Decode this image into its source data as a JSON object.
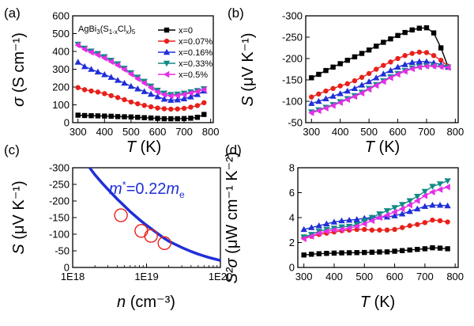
{
  "chart_data": [
    {
      "type": "line",
      "panel_label": "(a)",
      "xlabel": "T (K)",
      "ylabel": "σ (S cm⁻¹)",
      "xlim": [
        280,
        810
      ],
      "ylim": [
        0,
        600
      ],
      "xticks": [
        300,
        400,
        500,
        600,
        700,
        800
      ],
      "yticks": [
        0,
        100,
        200,
        300,
        400,
        500,
        600
      ],
      "legend_title": "AgBi3(S1-xClx)5",
      "legend_position": "top-right",
      "series": [
        {
          "name": "x=0",
          "color": "#000000",
          "marker": "square",
          "x": [
            300,
            325,
            350,
            375,
            400,
            425,
            450,
            475,
            500,
            525,
            550,
            575,
            600,
            625,
            650,
            675,
            700,
            725,
            750,
            775
          ],
          "y": [
            42,
            40,
            39,
            38,
            37,
            36,
            34,
            33,
            32,
            30,
            28,
            26,
            24,
            22,
            22,
            22,
            23,
            25,
            30,
            46
          ]
        },
        {
          "name": "x=0.07%",
          "color": "#e8201b",
          "marker": "circle",
          "x": [
            300,
            325,
            350,
            375,
            400,
            425,
            450,
            475,
            500,
            525,
            550,
            575,
            600,
            625,
            650,
            675,
            700,
            725,
            750,
            775
          ],
          "y": [
            197,
            185,
            178,
            172,
            163,
            152,
            141,
            129,
            116,
            106,
            97,
            89,
            82,
            78,
            76,
            77,
            80,
            87,
            96,
            112
          ]
        },
        {
          "name": "x=0.16%",
          "color": "#1f2fd8",
          "marker": "triangle-up",
          "x": [
            300,
            325,
            350,
            375,
            400,
            425,
            450,
            475,
            500,
            525,
            550,
            575,
            600,
            625,
            650,
            675,
            700,
            725,
            750,
            775
          ],
          "y": [
            340,
            315,
            300,
            285,
            270,
            255,
            238,
            222,
            204,
            190,
            175,
            160,
            146,
            132,
            126,
            128,
            134,
            145,
            158,
            178
          ]
        },
        {
          "name": "x=0.33%",
          "color": "#108a86",
          "marker": "triangle-down",
          "x": [
            300,
            325,
            350,
            375,
            400,
            425,
            450,
            475,
            500,
            525,
            550,
            575,
            600,
            625,
            650,
            675,
            700,
            725,
            750,
            775
          ],
          "y": [
            440,
            418,
            402,
            388,
            370,
            350,
            330,
            305,
            280,
            255,
            232,
            205,
            182,
            166,
            158,
            160,
            165,
            173,
            180,
            190
          ]
        },
        {
          "name": "x=0.5%",
          "color": "#e62ee6",
          "marker": "triangle-left",
          "x": [
            300,
            325,
            350,
            375,
            400,
            425,
            450,
            475,
            500,
            525,
            550,
            575,
            600,
            625,
            650,
            675,
            700,
            725,
            750,
            775
          ],
          "y": [
            435,
            412,
            395,
            380,
            362,
            342,
            322,
            298,
            272,
            246,
            222,
            196,
            172,
            157,
            150,
            152,
            158,
            167,
            175,
            186
          ]
        }
      ]
    },
    {
      "type": "line",
      "panel_label": "(b)",
      "xlabel": "T (K)",
      "ylabel": "S (μV K⁻¹)",
      "xlim": [
        280,
        810
      ],
      "ylim": [
        -50,
        -300
      ],
      "xticks": [
        300,
        400,
        500,
        600,
        700,
        800
      ],
      "yticks": [
        -50,
        -100,
        -150,
        -200,
        -250,
        -300
      ],
      "series": [
        {
          "name": "x=0",
          "color": "#000000",
          "marker": "square",
          "x": [
            300,
            325,
            350,
            375,
            400,
            425,
            450,
            475,
            500,
            525,
            550,
            575,
            600,
            625,
            650,
            675,
            700,
            725,
            750,
            775
          ],
          "y": [
            -155,
            -163,
            -172,
            -180,
            -188,
            -196,
            -204,
            -212,
            -220,
            -229,
            -238,
            -246,
            -254,
            -261,
            -267,
            -271,
            -272,
            -260,
            -225,
            -180
          ]
        },
        {
          "name": "x=0.07%",
          "color": "#e8201b",
          "marker": "circle",
          "x": [
            300,
            325,
            350,
            375,
            400,
            425,
            450,
            475,
            500,
            525,
            550,
            575,
            600,
            625,
            650,
            675,
            700,
            725,
            750,
            775
          ],
          "y": [
            -110,
            -117,
            -124,
            -130,
            -136,
            -141,
            -148,
            -156,
            -165,
            -175,
            -184,
            -192,
            -200,
            -207,
            -212,
            -215,
            -214,
            -207,
            -196,
            -182
          ]
        },
        {
          "name": "x=0.16%",
          "color": "#1f2fd8",
          "marker": "triangle-up",
          "x": [
            300,
            325,
            350,
            375,
            400,
            425,
            450,
            475,
            500,
            525,
            550,
            575,
            600,
            625,
            650,
            675,
            700,
            725,
            750,
            775
          ],
          "y": [
            -95,
            -100,
            -106,
            -112,
            -118,
            -124,
            -130,
            -138,
            -146,
            -155,
            -164,
            -172,
            -180,
            -186,
            -191,
            -193,
            -193,
            -190,
            -186,
            -180
          ]
        },
        {
          "name": "x=0.33%",
          "color": "#108a86",
          "marker": "triangle-down",
          "x": [
            300,
            325,
            350,
            375,
            400,
            425,
            450,
            475,
            500,
            525,
            550,
            575,
            600,
            625,
            650,
            675,
            700,
            725,
            750,
            775
          ],
          "y": [
            -75,
            -80,
            -86,
            -92,
            -99,
            -106,
            -113,
            -121,
            -130,
            -139,
            -148,
            -157,
            -165,
            -172,
            -178,
            -181,
            -183,
            -183,
            -182,
            -180
          ]
        },
        {
          "name": "x=0.5%",
          "color": "#e62ee6",
          "marker": "triangle-left",
          "x": [
            300,
            325,
            350,
            375,
            400,
            425,
            450,
            475,
            500,
            525,
            550,
            575,
            600,
            625,
            650,
            675,
            700,
            725,
            750,
            775
          ],
          "y": [
            -73,
            -78,
            -84,
            -90,
            -97,
            -104,
            -111,
            -119,
            -128,
            -137,
            -146,
            -155,
            -163,
            -170,
            -176,
            -180,
            -182,
            -182,
            -181,
            -179
          ]
        }
      ]
    },
    {
      "type": "scatter",
      "panel_label": "(c)",
      "xlabel": "n (cm⁻³)",
      "ylabel": "S (μV K⁻¹)",
      "x_scale": "log",
      "xlim": [
        1e+18,
        1e+20
      ],
      "ylim": [
        0,
        -300
      ],
      "xtick_labels": [
        "1E18",
        "1E19",
        "1E20"
      ],
      "yticks": [
        0,
        -50,
        -100,
        -150,
        -200,
        -250,
        -300
      ],
      "annotation": {
        "text": "m*=0.22m",
        "subscript": "e"
      },
      "curve_color": "#1f2fd8",
      "curve_points": {
        "x": [
          1.7e+18,
          2e+18,
          2.5e+18,
          3e+18,
          4e+18,
          5e+18,
          6e+18,
          8e+18,
          1e+19,
          1.3e+19,
          1.7e+19,
          2e+19,
          3e+19,
          4e+19,
          5e+19,
          7e+19,
          1e+20
        ],
        "y": [
          -300,
          -279,
          -254,
          -235,
          -206,
          -185,
          -168,
          -144,
          -127,
          -108,
          -89,
          -79,
          -60,
          -48,
          -40,
          -30,
          -21
        ]
      },
      "points": {
        "color": "#e8201b",
        "marker": "open-circle",
        "x": [
          4.5e+18,
          8.5e+18,
          1.15e+19,
          1.75e+19
        ],
        "y": [
          -157,
          -110,
          -95,
          -73
        ]
      }
    },
    {
      "type": "line",
      "panel_label": "(d)",
      "xlabel": "T (K)",
      "ylabel": "S²σ (μW cm⁻¹ K⁻²)",
      "xlim": [
        280,
        810
      ],
      "ylim": [
        0,
        8
      ],
      "xticks": [
        300,
        400,
        500,
        600,
        700,
        800
      ],
      "yticks": [
        0,
        2,
        4,
        6,
        8
      ],
      "series": [
        {
          "name": "x=0",
          "color": "#000000",
          "marker": "square",
          "x": [
            300,
            325,
            350,
            375,
            400,
            425,
            450,
            475,
            500,
            525,
            550,
            575,
            600,
            625,
            650,
            675,
            700,
            725,
            750,
            775
          ],
          "y": [
            1.0,
            1.06,
            1.1,
            1.13,
            1.15,
            1.17,
            1.18,
            1.19,
            1.2,
            1.22,
            1.24,
            1.25,
            1.3,
            1.35,
            1.4,
            1.45,
            1.5,
            1.58,
            1.55,
            1.5
          ]
        },
        {
          "name": "x=0.07%",
          "color": "#e8201b",
          "marker": "circle",
          "x": [
            300,
            325,
            350,
            375,
            400,
            425,
            450,
            475,
            500,
            525,
            550,
            575,
            600,
            625,
            650,
            675,
            700,
            725,
            750,
            775
          ],
          "y": [
            2.4,
            2.5,
            2.65,
            2.75,
            2.85,
            2.95,
            3.0,
            3.05,
            3.05,
            3.0,
            3.0,
            3.0,
            3.05,
            3.2,
            3.35,
            3.45,
            3.6,
            3.8,
            3.75,
            3.65
          ]
        },
        {
          "name": "x=0.16%",
          "color": "#1f2fd8",
          "marker": "triangle-up",
          "x": [
            300,
            325,
            350,
            375,
            400,
            425,
            450,
            475,
            500,
            525,
            550,
            575,
            600,
            625,
            650,
            675,
            700,
            725,
            750,
            775
          ],
          "y": [
            3.05,
            3.2,
            3.35,
            3.5,
            3.65,
            3.75,
            3.8,
            3.85,
            3.95,
            4.0,
            4.05,
            4.05,
            4.15,
            4.3,
            4.5,
            4.7,
            4.9,
            5.0,
            5.0,
            4.95
          ]
        },
        {
          "name": "x=0.33%",
          "color": "#108a86",
          "marker": "triangle-down",
          "x": [
            300,
            325,
            350,
            375,
            400,
            425,
            450,
            475,
            500,
            525,
            550,
            575,
            600,
            625,
            650,
            675,
            700,
            725,
            750,
            775
          ],
          "y": [
            2.45,
            2.65,
            2.9,
            3.05,
            3.15,
            3.25,
            3.3,
            3.45,
            3.75,
            4.0,
            4.3,
            4.55,
            4.8,
            5.05,
            5.35,
            5.7,
            6.1,
            6.5,
            6.7,
            6.95
          ]
        },
        {
          "name": "x=0.5%",
          "color": "#e62ee6",
          "marker": "triangle-left",
          "x": [
            300,
            325,
            350,
            375,
            400,
            425,
            450,
            475,
            500,
            525,
            550,
            575,
            600,
            625,
            650,
            675,
            700,
            725,
            750,
            775
          ],
          "y": [
            2.3,
            2.5,
            2.75,
            2.9,
            3.0,
            3.05,
            3.15,
            3.3,
            3.5,
            3.75,
            4.0,
            4.2,
            4.45,
            4.7,
            5.0,
            5.35,
            5.75,
            6.05,
            6.25,
            6.45
          ]
        }
      ]
    }
  ]
}
